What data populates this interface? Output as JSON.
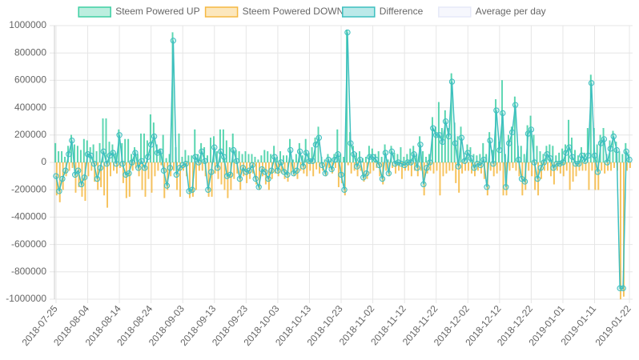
{
  "chart_data": {
    "type": "bar",
    "categories": [
      "2018-07-25",
      null,
      null,
      null,
      null,
      null,
      null,
      null,
      null,
      null,
      "2018-08-04",
      null,
      null,
      null,
      null,
      null,
      null,
      null,
      null,
      null,
      "2018-08-14",
      null,
      null,
      null,
      null,
      null,
      null,
      null,
      null,
      null,
      "2018-08-24",
      null,
      null,
      null,
      null,
      null,
      null,
      null,
      null,
      null,
      "2018-09-03",
      null,
      null,
      null,
      null,
      null,
      null,
      null,
      null,
      null,
      "2018-09-13",
      null,
      null,
      null,
      null,
      null,
      null,
      null,
      null,
      null,
      "2018-09-23",
      null,
      null,
      null,
      null,
      null,
      null,
      null,
      null,
      null,
      "2018-10-03",
      null,
      null,
      null,
      null,
      null,
      null,
      null,
      null,
      null,
      "2018-10-13",
      null,
      null,
      null,
      null,
      null,
      null,
      null,
      null,
      null,
      "2018-10-23",
      null,
      null,
      null,
      null,
      null,
      null,
      null,
      null,
      null,
      "2018-11-02",
      null,
      null,
      null,
      null,
      null,
      null,
      null,
      null,
      null,
      "2018-11-12",
      null,
      null,
      null,
      null,
      null,
      null,
      null,
      null,
      null,
      "2018-11-22",
      null,
      null,
      null,
      null,
      null,
      null,
      null,
      null,
      null,
      "2018-12-02",
      null,
      null,
      null,
      null,
      null,
      null,
      null,
      null,
      null,
      "2018-12-12",
      null,
      null,
      null,
      null,
      null,
      null,
      null,
      null,
      null,
      "2018-12-22",
      null,
      null,
      null,
      null,
      null,
      null,
      null,
      null,
      null,
      "2019-01-01",
      null,
      null,
      null,
      null,
      null,
      null,
      null,
      null,
      null,
      "2019-01-11",
      null,
      null,
      null,
      null,
      null,
      null,
      null,
      null,
      null,
      null,
      "2019-01-22"
    ],
    "series": [
      {
        "name": "Steem Powered UP",
        "color": "#3ecfa3",
        "kind": "bar",
        "values": [
          140000,
          80000,
          80000,
          40000,
          120000,
          200000,
          130000,
          120000,
          90000,
          170000,
          160000,
          110000,
          130000,
          80000,
          140000,
          320000,
          320000,
          150000,
          130000,
          70000,
          240000,
          140000,
          170000,
          170000,
          60000,
          110000,
          60000,
          210000,
          210000,
          160000,
          350000,
          290000,
          130000,
          100000,
          200000,
          30000,
          60000,
          950000,
          110000,
          210000,
          40000,
          90000,
          50000,
          50000,
          240000,
          60000,
          140000,
          110000,
          50000,
          180000,
          190000,
          80000,
          240000,
          240000,
          160000,
          110000,
          210000,
          90000,
          80000,
          60000,
          80000,
          60000,
          60000,
          40000,
          20000,
          50000,
          90000,
          80000,
          60000,
          120000,
          40000,
          80000,
          50000,
          50000,
          170000,
          20000,
          60000,
          140000,
          50000,
          170000,
          70000,
          110000,
          180000,
          260000,
          40000,
          20000,
          60000,
          30000,
          60000,
          240000,
          60000,
          40000,
          970000,
          220000,
          120000,
          70000,
          80000,
          30000,
          40000,
          120000,
          100000,
          60000,
          80000,
          40000,
          130000,
          20000,
          120000,
          70000,
          60000,
          110000,
          40000,
          60000,
          100000,
          120000,
          60000,
          190000,
          80000,
          40000,
          60000,
          330000,
          260000,
          440000,
          250000,
          380000,
          250000,
          650000,
          290000,
          190000,
          260000,
          70000,
          130000,
          110000,
          60000,
          50000,
          60000,
          140000,
          60000,
          220000,
          90000,
          460000,
          150000,
          600000,
          60000,
          200000,
          260000,
          480000,
          120000,
          120000,
          60000,
          270000,
          340000,
          200000,
          120000,
          80000,
          60000,
          120000,
          130000,
          120000,
          50000,
          70000,
          100000,
          130000,
          310000,
          180000,
          90000,
          50000,
          110000,
          70000,
          250000,
          640000,
          250000,
          130000,
          200000,
          250000,
          60000,
          160000,
          230000,
          150000,
          80000,
          60000,
          140000,
          60000
        ]
      },
      {
        "name": "Steem Powered DOWN",
        "color": "#f5b942",
        "kind": "bar",
        "values": [
          -240000,
          -290000,
          -200000,
          -100000,
          -60000,
          -40000,
          -220000,
          -180000,
          -250000,
          -280000,
          -100000,
          -60000,
          -140000,
          -200000,
          -180000,
          -240000,
          -330000,
          -100000,
          -60000,
          -80000,
          -40000,
          -150000,
          -260000,
          -250000,
          -60000,
          -40000,
          -100000,
          -200000,
          -250000,
          -120000,
          -220000,
          -100000,
          -60000,
          -20000,
          -260000,
          -200000,
          -100000,
          -60000,
          -200000,
          -250000,
          -60000,
          -100000,
          -260000,
          -250000,
          -200000,
          -60000,
          -60000,
          -100000,
          -250000,
          -250000,
          -80000,
          -120000,
          -160000,
          -200000,
          -260000,
          -200000,
          -120000,
          -80000,
          -200000,
          -100000,
          -150000,
          -120000,
          -80000,
          -160000,
          -200000,
          -100000,
          -160000,
          -200000,
          -120000,
          -80000,
          -100000,
          -80000,
          -120000,
          -140000,
          -80000,
          -100000,
          -120000,
          -60000,
          -80000,
          -100000,
          -60000,
          -100000,
          -50000,
          -80000,
          -60000,
          -100000,
          -40000,
          -80000,
          -40000,
          -180000,
          -150000,
          -240000,
          -20000,
          -80000,
          -60000,
          -100000,
          -60000,
          -140000,
          -120000,
          -80000,
          -60000,
          -40000,
          -100000,
          -160000,
          -60000,
          -100000,
          -40000,
          -80000,
          -60000,
          -120000,
          -60000,
          -60000,
          -100000,
          -60000,
          -100000,
          -60000,
          -240000,
          -80000,
          -60000,
          -80000,
          -60000,
          -240000,
          -100000,
          -80000,
          -60000,
          -60000,
          -150000,
          -220000,
          -80000,
          -60000,
          -60000,
          -80000,
          -100000,
          -60000,
          -80000,
          -120000,
          -240000,
          -60000,
          -100000,
          -80000,
          -60000,
          -240000,
          -240000,
          -60000,
          -40000,
          -60000,
          -100000,
          -240000,
          -200000,
          -60000,
          -100000,
          -200000,
          -240000,
          -120000,
          -60000,
          -60000,
          -100000,
          -160000,
          -60000,
          -80000,
          -100000,
          -60000,
          -200000,
          -140000,
          -100000,
          -60000,
          -60000,
          -60000,
          -200000,
          -60000,
          -200000,
          -200000,
          -60000,
          -80000,
          -60000,
          -60000,
          -40000,
          -60000,
          -1000000,
          -980000,
          -60000,
          -40000
        ]
      },
      {
        "name": "Difference",
        "color": "#3dbfbf",
        "kind": "line",
        "values": [
          -100000,
          -210000,
          -120000,
          -60000,
          60000,
          160000,
          -90000,
          -60000,
          -160000,
          -110000,
          60000,
          50000,
          -10000,
          -120000,
          -40000,
          80000,
          -10000,
          50000,
          70000,
          -10000,
          200000,
          -10000,
          -90000,
          -80000,
          0,
          70000,
          -40000,
          10000,
          -40000,
          40000,
          130000,
          190000,
          70000,
          80000,
          -60000,
          -170000,
          -40000,
          890000,
          -90000,
          -40000,
          -20000,
          -10000,
          -210000,
          -200000,
          40000,
          0,
          80000,
          10000,
          -200000,
          -70000,
          110000,
          -40000,
          80000,
          40000,
          -100000,
          -90000,
          90000,
          10000,
          -120000,
          -40000,
          -70000,
          -60000,
          -20000,
          -120000,
          -180000,
          -50000,
          -70000,
          -120000,
          -60000,
          40000,
          -60000,
          0,
          -70000,
          -90000,
          90000,
          -80000,
          -60000,
          80000,
          -30000,
          70000,
          10000,
          10000,
          130000,
          180000,
          -20000,
          -80000,
          20000,
          -50000,
          20000,
          60000,
          -90000,
          -200000,
          950000,
          140000,
          60000,
          -30000,
          20000,
          -110000,
          -80000,
          40000,
          40000,
          20000,
          -20000,
          -120000,
          70000,
          -80000,
          80000,
          -10000,
          0,
          -10000,
          -20000,
          0,
          0,
          60000,
          -40000,
          130000,
          -160000,
          -40000,
          0,
          250000,
          200000,
          200000,
          150000,
          300000,
          190000,
          590000,
          140000,
          -30000,
          180000,
          10000,
          70000,
          30000,
          -40000,
          -10000,
          -20000,
          20000,
          -180000,
          160000,
          -10000,
          380000,
          90000,
          360000,
          -180000,
          140000,
          220000,
          420000,
          20000,
          -120000,
          -140000,
          210000,
          240000,
          0,
          -120000,
          -40000,
          0,
          60000,
          30000,
          -40000,
          -10000,
          -10000,
          0,
          70000,
          110000,
          40000,
          -10000,
          -10000,
          50000,
          10000,
          50000,
          580000,
          50000,
          -70000,
          140000,
          170000,
          0,
          100000,
          190000,
          90000,
          -920000,
          -920000,
          80000,
          20000
        ]
      },
      {
        "name": "Average per day",
        "color": "#e6e9f8",
        "kind": "line",
        "values": [
          null,
          null,
          null,
          null,
          null,
          null,
          null,
          null,
          null,
          null,
          null,
          null,
          null,
          null,
          null,
          null,
          null,
          null,
          null,
          null,
          null,
          null,
          null,
          null,
          null,
          null,
          null,
          null,
          null,
          null,
          null,
          null,
          null,
          null,
          null,
          null,
          null,
          null,
          null,
          null,
          null,
          null,
          null,
          null,
          null,
          null,
          null,
          null,
          null,
          null,
          null,
          null,
          null,
          null,
          null,
          null,
          null,
          null,
          null,
          null,
          null,
          null,
          null,
          null,
          null,
          null,
          null,
          null,
          null,
          null,
          null,
          null,
          null,
          null,
          null,
          null,
          null,
          null,
          null,
          null,
          null,
          null,
          null,
          null,
          null,
          null,
          null,
          null,
          null,
          null,
          null,
          null,
          null,
          null,
          null,
          null,
          null,
          null,
          null,
          null,
          null,
          null,
          null,
          null,
          null,
          null,
          null,
          null,
          null,
          null,
          null,
          null,
          null,
          null,
          null,
          null,
          null,
          null,
          null,
          null,
          null,
          null,
          null,
          null,
          null,
          null,
          null,
          null,
          null,
          null,
          null,
          null,
          null,
          null,
          null,
          null,
          null,
          null,
          null,
          null,
          null,
          null,
          null,
          null,
          null,
          null,
          null,
          null,
          null,
          null,
          null,
          null,
          null,
          null,
          null,
          null,
          null,
          null,
          null,
          null,
          null,
          null,
          null,
          null,
          null,
          null,
          null,
          null,
          null,
          null,
          null,
          null,
          null,
          null,
          null,
          null,
          null,
          null,
          null,
          null,
          null,
          null
        ]
      }
    ],
    "ylim": [
      -1000000,
      1000000
    ],
    "yticks": [
      -1000000,
      -800000,
      -600000,
      -400000,
      -200000,
      0,
      200000,
      400000,
      600000,
      800000,
      1000000
    ],
    "grid": true,
    "legend": "top"
  }
}
